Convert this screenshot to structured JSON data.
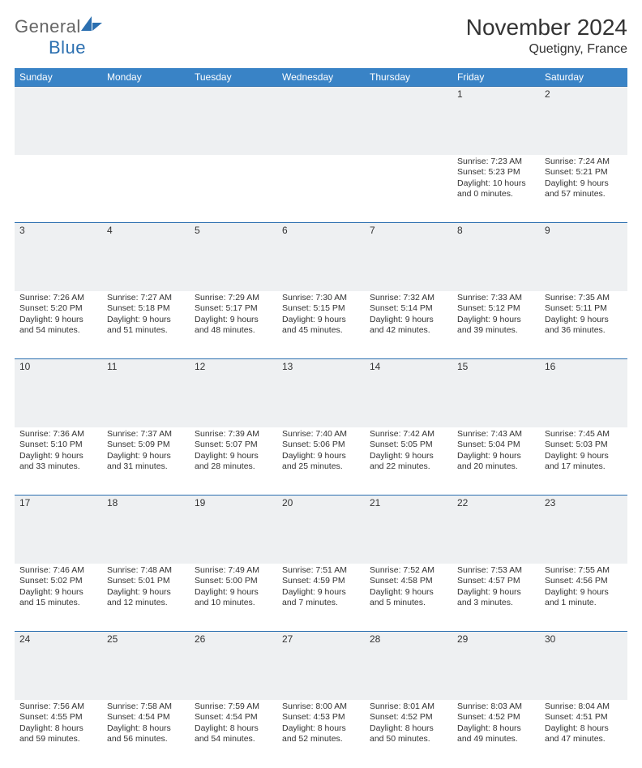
{
  "logo": {
    "general": "General",
    "blue": "Blue"
  },
  "header": {
    "title": "November 2024",
    "location": "Quetigny, France"
  },
  "colors": {
    "header_bg": "#3983c6",
    "header_text": "#ffffff",
    "daynum_bg": "#eef0f2",
    "rule": "#2b6fb0"
  },
  "columns": [
    "Sunday",
    "Monday",
    "Tuesday",
    "Wednesday",
    "Thursday",
    "Friday",
    "Saturday"
  ],
  "weeks": [
    [
      null,
      null,
      null,
      null,
      null,
      {
        "n": "1",
        "sr": "7:23 AM",
        "ss": "5:23 PM",
        "dl": "10 hours and 0 minutes."
      },
      {
        "n": "2",
        "sr": "7:24 AM",
        "ss": "5:21 PM",
        "dl": "9 hours and 57 minutes."
      }
    ],
    [
      {
        "n": "3",
        "sr": "7:26 AM",
        "ss": "5:20 PM",
        "dl": "9 hours and 54 minutes."
      },
      {
        "n": "4",
        "sr": "7:27 AM",
        "ss": "5:18 PM",
        "dl": "9 hours and 51 minutes."
      },
      {
        "n": "5",
        "sr": "7:29 AM",
        "ss": "5:17 PM",
        "dl": "9 hours and 48 minutes."
      },
      {
        "n": "6",
        "sr": "7:30 AM",
        "ss": "5:15 PM",
        "dl": "9 hours and 45 minutes."
      },
      {
        "n": "7",
        "sr": "7:32 AM",
        "ss": "5:14 PM",
        "dl": "9 hours and 42 minutes."
      },
      {
        "n": "8",
        "sr": "7:33 AM",
        "ss": "5:12 PM",
        "dl": "9 hours and 39 minutes."
      },
      {
        "n": "9",
        "sr": "7:35 AM",
        "ss": "5:11 PM",
        "dl": "9 hours and 36 minutes."
      }
    ],
    [
      {
        "n": "10",
        "sr": "7:36 AM",
        "ss": "5:10 PM",
        "dl": "9 hours and 33 minutes."
      },
      {
        "n": "11",
        "sr": "7:37 AM",
        "ss": "5:09 PM",
        "dl": "9 hours and 31 minutes."
      },
      {
        "n": "12",
        "sr": "7:39 AM",
        "ss": "5:07 PM",
        "dl": "9 hours and 28 minutes."
      },
      {
        "n": "13",
        "sr": "7:40 AM",
        "ss": "5:06 PM",
        "dl": "9 hours and 25 minutes."
      },
      {
        "n": "14",
        "sr": "7:42 AM",
        "ss": "5:05 PM",
        "dl": "9 hours and 22 minutes."
      },
      {
        "n": "15",
        "sr": "7:43 AM",
        "ss": "5:04 PM",
        "dl": "9 hours and 20 minutes."
      },
      {
        "n": "16",
        "sr": "7:45 AM",
        "ss": "5:03 PM",
        "dl": "9 hours and 17 minutes."
      }
    ],
    [
      {
        "n": "17",
        "sr": "7:46 AM",
        "ss": "5:02 PM",
        "dl": "9 hours and 15 minutes."
      },
      {
        "n": "18",
        "sr": "7:48 AM",
        "ss": "5:01 PM",
        "dl": "9 hours and 12 minutes."
      },
      {
        "n": "19",
        "sr": "7:49 AM",
        "ss": "5:00 PM",
        "dl": "9 hours and 10 minutes."
      },
      {
        "n": "20",
        "sr": "7:51 AM",
        "ss": "4:59 PM",
        "dl": "9 hours and 7 minutes."
      },
      {
        "n": "21",
        "sr": "7:52 AM",
        "ss": "4:58 PM",
        "dl": "9 hours and 5 minutes."
      },
      {
        "n": "22",
        "sr": "7:53 AM",
        "ss": "4:57 PM",
        "dl": "9 hours and 3 minutes."
      },
      {
        "n": "23",
        "sr": "7:55 AM",
        "ss": "4:56 PM",
        "dl": "9 hours and 1 minute."
      }
    ],
    [
      {
        "n": "24",
        "sr": "7:56 AM",
        "ss": "4:55 PM",
        "dl": "8 hours and 59 minutes."
      },
      {
        "n": "25",
        "sr": "7:58 AM",
        "ss": "4:54 PM",
        "dl": "8 hours and 56 minutes."
      },
      {
        "n": "26",
        "sr": "7:59 AM",
        "ss": "4:54 PM",
        "dl": "8 hours and 54 minutes."
      },
      {
        "n": "27",
        "sr": "8:00 AM",
        "ss": "4:53 PM",
        "dl": "8 hours and 52 minutes."
      },
      {
        "n": "28",
        "sr": "8:01 AM",
        "ss": "4:52 PM",
        "dl": "8 hours and 50 minutes."
      },
      {
        "n": "29",
        "sr": "8:03 AM",
        "ss": "4:52 PM",
        "dl": "8 hours and 49 minutes."
      },
      {
        "n": "30",
        "sr": "8:04 AM",
        "ss": "4:51 PM",
        "dl": "8 hours and 47 minutes."
      }
    ]
  ],
  "labels": {
    "sunrise": "Sunrise: ",
    "sunset": "Sunset: ",
    "daylight": "Daylight: "
  }
}
